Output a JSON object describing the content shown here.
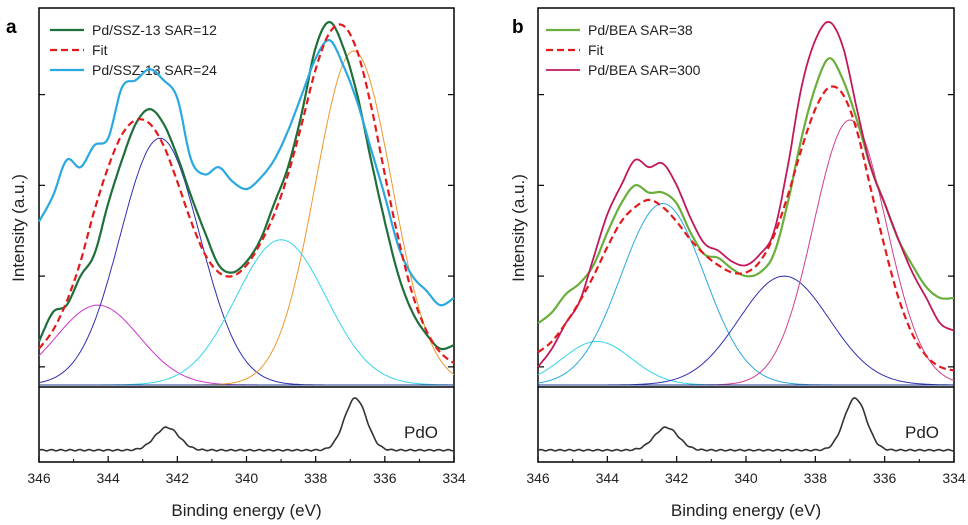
{
  "chart_data": [
    {
      "type": "line",
      "panel_label": "a",
      "xlabel": "Binding energy (eV)",
      "ylabel": "Intensity (a.u.)",
      "xlim": [
        346,
        334
      ],
      "x_ticks": [
        346,
        344,
        342,
        340,
        338,
        336,
        334
      ],
      "x_reversed": true,
      "ylim": [
        0,
        1
      ],
      "ylim_reference": [
        0,
        1
      ],
      "grid": false,
      "legend_position": "top-left",
      "legend": [
        {
          "name": "Pd/SSZ-13 SAR=12",
          "color": "#1f6f3a",
          "style": "solid"
        },
        {
          "name": "Fit",
          "color": "#e31a1c",
          "style": "dashed"
        },
        {
          "name": "Pd/SSZ-13 SAR=24",
          "color": "#29a9e0",
          "style": "solid"
        }
      ],
      "series": [
        {
          "name": "Pd/SSZ-13 SAR=12",
          "color": "#1f6f3a",
          "width": 2.2,
          "kind": "data",
          "x": [
            346,
            345.6,
            345.2,
            344.8,
            344.4,
            344,
            343.6,
            343.2,
            342.8,
            342.4,
            342,
            341.6,
            341.2,
            340.8,
            340.4,
            340,
            339.6,
            339.2,
            338.8,
            338.4,
            338,
            337.6,
            337.2,
            336.8,
            336.4,
            336,
            335.6,
            335.2,
            334.8,
            334.4,
            334
          ],
          "y": [
            0.12,
            0.2,
            0.22,
            0.3,
            0.36,
            0.5,
            0.62,
            0.72,
            0.76,
            0.72,
            0.63,
            0.52,
            0.42,
            0.33,
            0.31,
            0.34,
            0.4,
            0.5,
            0.6,
            0.75,
            0.93,
            1.0,
            0.93,
            0.8,
            0.62,
            0.45,
            0.3,
            0.2,
            0.14,
            0.1,
            0.11
          ]
        },
        {
          "name": "Fit",
          "color": "#e31a1c",
          "width": 2.2,
          "kind": "fit",
          "x": [
            346,
            345.6,
            345.2,
            344.8,
            344.4,
            344,
            343.6,
            343.2,
            342.8,
            342.4,
            342,
            341.6,
            341.2,
            340.8,
            340.4,
            340,
            339.6,
            339.2,
            338.8,
            338.4,
            338,
            337.6,
            337.2,
            336.8,
            336.4,
            336,
            335.6,
            335.2,
            334.8,
            334.4,
            334
          ],
          "y": [
            0.1,
            0.15,
            0.23,
            0.34,
            0.48,
            0.6,
            0.69,
            0.73,
            0.72,
            0.66,
            0.56,
            0.45,
            0.36,
            0.31,
            0.3,
            0.33,
            0.39,
            0.47,
            0.58,
            0.72,
            0.87,
            0.97,
            0.99,
            0.92,
            0.77,
            0.58,
            0.4,
            0.25,
            0.15,
            0.09,
            0.06
          ]
        },
        {
          "name": "Pd/SSZ-13 SAR=24",
          "color": "#29a9e0",
          "width": 2.2,
          "kind": "data",
          "x": [
            346,
            345.6,
            345.2,
            344.8,
            344.4,
            344,
            343.6,
            343.2,
            342.8,
            342.4,
            342,
            341.6,
            341.2,
            340.8,
            340.4,
            340,
            339.6,
            339.2,
            338.8,
            338.4,
            338,
            337.6,
            337.2,
            336.8,
            336.4,
            336,
            335.6,
            335.2,
            334.8,
            334.4,
            334
          ],
          "y": [
            0.45,
            0.52,
            0.62,
            0.6,
            0.66,
            0.68,
            0.82,
            0.84,
            0.87,
            0.84,
            0.79,
            0.62,
            0.58,
            0.6,
            0.56,
            0.54,
            0.57,
            0.62,
            0.7,
            0.8,
            0.9,
            0.95,
            0.88,
            0.78,
            0.65,
            0.52,
            0.38,
            0.3,
            0.26,
            0.22,
            0.24
          ]
        },
        {
          "name": "",
          "color": "#cc33cc",
          "width": 1,
          "kind": "component",
          "center": 344.3,
          "height": 0.22,
          "sigma": 1.2
        },
        {
          "name": "",
          "color": "#2f2fb3",
          "width": 1,
          "kind": "component",
          "center": 342.5,
          "height": 0.68,
          "sigma": 1.15
        },
        {
          "name": "",
          "color": "#33d6e8",
          "width": 1,
          "kind": "component",
          "center": 339.0,
          "height": 0.4,
          "sigma": 1.3
        },
        {
          "name": "",
          "color": "#f0962e",
          "width": 1,
          "kind": "component",
          "center": 336.9,
          "height": 0.92,
          "sigma": 1.1
        }
      ],
      "reference": {
        "label": "PdO",
        "color": "#333333",
        "peaks": [
          {
            "center": 342.3,
            "height": 0.35,
            "sigma": 0.35
          },
          {
            "center": 336.85,
            "height": 0.8,
            "sigma": 0.32
          }
        ],
        "baseline": 0.12
      }
    },
    {
      "type": "line",
      "panel_label": "b",
      "xlabel": "Binding energy (eV)",
      "ylabel": "Intensity (a.u.)",
      "xlim": [
        346,
        334
      ],
      "x_ticks": [
        346,
        344,
        342,
        340,
        338,
        336,
        334
      ],
      "x_reversed": true,
      "ylim": [
        0,
        1
      ],
      "ylim_reference": [
        0,
        1
      ],
      "grid": false,
      "legend_position": "top-left",
      "legend": [
        {
          "name": "Pd/BEA SAR=38",
          "color": "#6aae3c",
          "style": "solid"
        },
        {
          "name": "Fit",
          "color": "#e31a1c",
          "style": "dashed"
        },
        {
          "name": "Pd/BEA SAR=300",
          "color": "#c2185b",
          "style": "solid"
        }
      ],
      "series": [
        {
          "name": "Pd/BEA SAR=38",
          "color": "#6aae3c",
          "width": 2.2,
          "kind": "data",
          "x": [
            346,
            345.6,
            345.2,
            344.8,
            344.4,
            344,
            343.6,
            343.2,
            342.8,
            342.4,
            342,
            341.6,
            341.2,
            340.8,
            340.4,
            340,
            339.6,
            339.2,
            338.8,
            338.4,
            338,
            337.6,
            337.2,
            336.8,
            336.4,
            336,
            335.6,
            335.2,
            334.8,
            334.4,
            334
          ],
          "y": [
            0.17,
            0.2,
            0.25,
            0.28,
            0.33,
            0.42,
            0.5,
            0.55,
            0.53,
            0.53,
            0.5,
            0.42,
            0.36,
            0.35,
            0.32,
            0.3,
            0.31,
            0.36,
            0.5,
            0.68,
            0.82,
            0.9,
            0.84,
            0.73,
            0.6,
            0.5,
            0.4,
            0.33,
            0.27,
            0.24,
            0.24
          ]
        },
        {
          "name": "Fit",
          "color": "#e31a1c",
          "width": 2.2,
          "kind": "fit",
          "x": [
            346,
            345.6,
            345.2,
            344.8,
            344.4,
            344,
            343.6,
            343.2,
            342.8,
            342.4,
            342,
            341.6,
            341.2,
            340.8,
            340.4,
            340,
            339.6,
            339.2,
            338.8,
            338.4,
            338,
            337.6,
            337.2,
            336.8,
            336.4,
            336,
            335.6,
            335.2,
            334.8,
            334.4,
            334
          ],
          "y": [
            0.09,
            0.12,
            0.17,
            0.23,
            0.3,
            0.38,
            0.45,
            0.49,
            0.51,
            0.49,
            0.45,
            0.4,
            0.36,
            0.33,
            0.31,
            0.31,
            0.34,
            0.41,
            0.52,
            0.65,
            0.76,
            0.82,
            0.8,
            0.7,
            0.54,
            0.38,
            0.24,
            0.14,
            0.08,
            0.05,
            0.04
          ]
        },
        {
          "name": "Pd/BEA SAR=300",
          "color": "#c2185b",
          "width": 1.8,
          "kind": "data",
          "x": [
            346,
            345.6,
            345.2,
            344.8,
            344.4,
            344,
            343.6,
            343.2,
            342.8,
            342.4,
            342,
            341.6,
            341.2,
            340.8,
            340.4,
            340,
            339.6,
            339.2,
            338.8,
            338.4,
            338,
            337.6,
            337.2,
            336.8,
            336.4,
            336,
            335.6,
            335.2,
            334.8,
            334.4,
            334
          ],
          "y": [
            0.05,
            0.1,
            0.17,
            0.23,
            0.35,
            0.47,
            0.55,
            0.62,
            0.6,
            0.61,
            0.55,
            0.46,
            0.39,
            0.37,
            0.34,
            0.33,
            0.36,
            0.42,
            0.6,
            0.82,
            0.95,
            1.0,
            0.93,
            0.76,
            0.6,
            0.5,
            0.4,
            0.31,
            0.24,
            0.17,
            0.15
          ]
        },
        {
          "name": "",
          "color": "#33d6e8",
          "width": 1,
          "kind": "component",
          "center": 344.3,
          "height": 0.12,
          "sigma": 1.0
        },
        {
          "name": "",
          "color": "#29a9e0",
          "width": 1,
          "kind": "component",
          "center": 342.4,
          "height": 0.5,
          "sigma": 1.2
        },
        {
          "name": "",
          "color": "#2f2fb3",
          "width": 1,
          "kind": "component",
          "center": 338.9,
          "height": 0.3,
          "sigma": 1.3
        },
        {
          "name": "",
          "color": "#d1408a",
          "width": 1,
          "kind": "component",
          "center": 337.0,
          "height": 0.73,
          "sigma": 1.05
        }
      ],
      "reference": {
        "label": "PdO",
        "color": "#333333",
        "peaks": [
          {
            "center": 342.3,
            "height": 0.35,
            "sigma": 0.35
          },
          {
            "center": 336.85,
            "height": 0.8,
            "sigma": 0.32
          }
        ],
        "baseline": 0.12
      }
    }
  ]
}
